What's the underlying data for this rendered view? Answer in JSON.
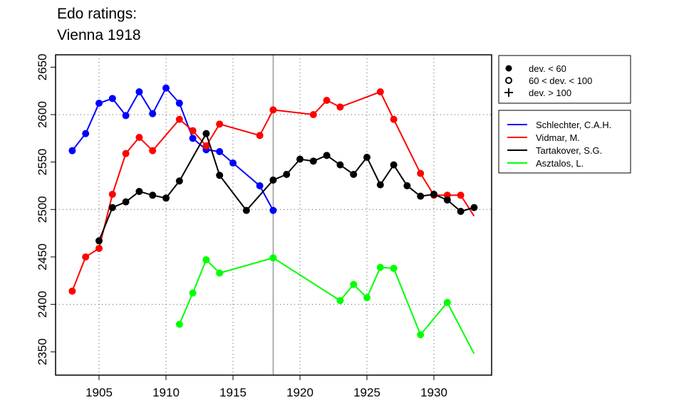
{
  "chart_data": {
    "type": "line",
    "title": [
      "Edo ratings:",
      "Vienna 1918"
    ],
    "xlabel": "",
    "ylabel": "",
    "xlim": [
      1902.3,
      1934.8
    ],
    "ylim": [
      2335,
      2663
    ],
    "xticks": [
      1905,
      1910,
      1915,
      1920,
      1925,
      1930
    ],
    "yticks": [
      2350,
      2400,
      2450,
      2500,
      2550,
      2600,
      2650
    ],
    "grid_x": [
      1905,
      1910,
      1915,
      1920,
      1925,
      1930
    ],
    "grid_y": [
      2400,
      2500,
      2600
    ],
    "vline": 1918,
    "marker_legend": [
      "dev. < 60",
      "60 < dev. < 100",
      "dev. > 100"
    ],
    "series": [
      {
        "name": "Schlechter, C.A.H.",
        "color": "#0000ff",
        "points": [
          [
            1903,
            2562
          ],
          [
            1904,
            2580
          ],
          [
            1905,
            2612
          ],
          [
            1906,
            2617
          ],
          [
            1907,
            2599
          ],
          [
            1908,
            2624
          ],
          [
            1909,
            2601
          ],
          [
            1910,
            2628
          ],
          [
            1911,
            2612
          ],
          [
            1912,
            2575
          ],
          [
            1913,
            2563
          ],
          [
            1914,
            2561
          ],
          [
            1915,
            2549
          ],
          [
            1917,
            2525
          ],
          [
            1918,
            2499
          ]
        ]
      },
      {
        "name": "Vidmar, M.",
        "color": "#ff0000",
        "points": [
          [
            1903,
            2414
          ],
          [
            1904,
            2450
          ],
          [
            1905,
            2459
          ],
          [
            1906,
            2516
          ],
          [
            1907,
            2559
          ],
          [
            1908,
            2576
          ],
          [
            1909,
            2562
          ],
          [
            1911,
            2595
          ],
          [
            1912,
            2583
          ],
          [
            1913,
            2567
          ],
          [
            1914,
            2590
          ],
          [
            1917,
            2578
          ],
          [
            1918,
            2605
          ],
          [
            1921,
            2600
          ],
          [
            1922,
            2615
          ],
          [
            1923,
            2608
          ],
          [
            1926,
            2624
          ],
          [
            1927,
            2595
          ],
          [
            1929,
            2538
          ],
          [
            1930,
            2515
          ],
          [
            1931,
            2515
          ],
          [
            1932,
            2515
          ]
        ],
        "line_end": [
          1933,
          2493
        ]
      },
      {
        "name": "Tartakover, S.G.",
        "color": "#000000",
        "points": [
          [
            1905,
            2467
          ],
          [
            1906,
            2502
          ],
          [
            1907,
            2508
          ],
          [
            1908,
            2519
          ],
          [
            1909,
            2515
          ],
          [
            1910,
            2512
          ],
          [
            1911,
            2530
          ],
          [
            1913,
            2580
          ],
          [
            1914,
            2536
          ],
          [
            1916,
            2499
          ],
          [
            1918,
            2531
          ],
          [
            1919,
            2537
          ],
          [
            1920,
            2553
          ],
          [
            1921,
            2551
          ],
          [
            1922,
            2557
          ],
          [
            1923,
            2547
          ],
          [
            1924,
            2537
          ],
          [
            1925,
            2555
          ],
          [
            1926,
            2526
          ],
          [
            1927,
            2547
          ],
          [
            1928,
            2525
          ],
          [
            1929,
            2514
          ],
          [
            1930,
            2516
          ],
          [
            1931,
            2510
          ],
          [
            1932,
            2498
          ],
          [
            1933,
            2502
          ]
        ]
      },
      {
        "name": "Asztalos, L.",
        "color": "#00ff00",
        "points": [
          [
            1911,
            2379
          ],
          [
            1912,
            2412
          ],
          [
            1913,
            2447
          ],
          [
            1914,
            2433
          ],
          [
            1918,
            2449
          ],
          [
            1923,
            2404
          ],
          [
            1924,
            2421
          ],
          [
            1925,
            2407
          ],
          [
            1926,
            2439
          ],
          [
            1927,
            2438
          ],
          [
            1929,
            2368
          ],
          [
            1931,
            2402
          ]
        ],
        "line_end": [
          1933,
          2348
        ]
      }
    ]
  }
}
